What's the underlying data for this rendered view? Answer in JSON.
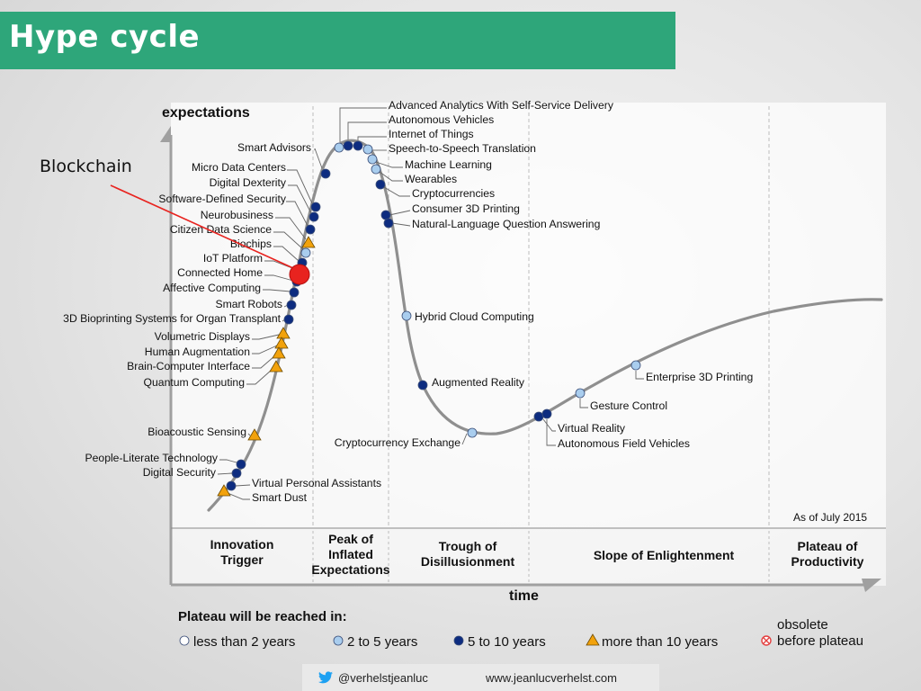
{
  "slide": {
    "title": "Hype cycle",
    "callout": "Blockchain"
  },
  "diagram": {
    "y_axis_label": "expectations",
    "x_axis_label": "time",
    "as_of": "As of July 2015",
    "phases": [
      {
        "lines": [
          "Innovation",
          "Trigger"
        ]
      },
      {
        "lines": [
          "Peak of",
          "Inflated",
          "Expectations"
        ]
      },
      {
        "lines": [
          "Trough of",
          "Disillusionment"
        ]
      },
      {
        "lines": [
          "Slope of Enlightenment"
        ]
      },
      {
        "lines": [
          "Plateau of",
          "Productivity"
        ]
      }
    ],
    "technologies": [
      {
        "name": "Advanced Analytics With Self-Service Delivery",
        "years": "2 to 5 years"
      },
      {
        "name": "Autonomous Vehicles",
        "years": "5 to 10 years"
      },
      {
        "name": "Internet of Things",
        "years": "5 to 10 years"
      },
      {
        "name": "Speech-to-Speech Translation",
        "years": "2 to 5 years"
      },
      {
        "name": "Machine Learning",
        "years": "2 to 5 years"
      },
      {
        "name": "Wearables",
        "years": "2 to 5 years"
      },
      {
        "name": "Cryptocurrencies",
        "years": "5 to 10 years"
      },
      {
        "name": "Consumer 3D Printing",
        "years": "5 to 10 years"
      },
      {
        "name": "Natural-Language Question Answering",
        "years": "5 to 10 years"
      },
      {
        "name": "Smart Advisors",
        "years": "5 to 10 years"
      },
      {
        "name": "Micro Data Centers",
        "years": "5 to 10 years"
      },
      {
        "name": "Digital Dexterity",
        "years": "5 to 10 years"
      },
      {
        "name": "Software-Defined Security",
        "years": "5 to 10 years"
      },
      {
        "name": "Neurobusiness",
        "years": "more than 10 years"
      },
      {
        "name": "Citizen Data Science",
        "years": "2 to 5 years"
      },
      {
        "name": "Biochips",
        "years": "5 to 10 years"
      },
      {
        "name": "IoT Platform",
        "years": "5 to 10 years"
      },
      {
        "name": "Connected Home",
        "years": "5 to 10 years"
      },
      {
        "name": "Affective Computing",
        "years": "5 to 10 years"
      },
      {
        "name": "Smart Robots",
        "years": "5 to 10 years"
      },
      {
        "name": "3D Bioprinting Systems for Organ Transplant",
        "years": "5 to 10 years"
      },
      {
        "name": "Volumetric Displays",
        "years": "more than 10 years"
      },
      {
        "name": "Human Augmentation",
        "years": "more than 10 years"
      },
      {
        "name": "Brain-Computer Interface",
        "years": "more than 10 years"
      },
      {
        "name": "Quantum Computing",
        "years": "more than 10 years"
      },
      {
        "name": "Bioacoustic Sensing",
        "years": "more than 10 years"
      },
      {
        "name": "People-Literate Technology",
        "years": "5 to 10 years"
      },
      {
        "name": "Digital Security",
        "years": "5 to 10 years"
      },
      {
        "name": "Virtual Personal Assistants",
        "years": "5 to 10 years"
      },
      {
        "name": "Smart Dust",
        "years": "more than 10 years"
      },
      {
        "name": "Hybrid Cloud Computing",
        "years": "2 to 5 years"
      },
      {
        "name": "Augmented Reality",
        "years": "5 to 10 years"
      },
      {
        "name": "Cryptocurrency Exchange",
        "years": "2 to 5 years"
      },
      {
        "name": "Virtual Reality",
        "years": "5 to 10 years"
      },
      {
        "name": "Autonomous Field Vehicles",
        "years": "5 to 10 years"
      },
      {
        "name": "Gesture Control",
        "years": "2 to 5 years"
      },
      {
        "name": "Enterprise 3D Printing",
        "years": "2 to 5 years"
      }
    ],
    "legend": {
      "title": "Plateau will be reached in:",
      "items": [
        {
          "label": "less than 2 years",
          "marker": "white-circle"
        },
        {
          "label": "2 to 5 years",
          "marker": "light-blue-circle"
        },
        {
          "label": "5 to 10 years",
          "marker": "dark-blue-circle"
        },
        {
          "label": "more than 10 years",
          "marker": "orange-triangle"
        }
      ],
      "obsolete": [
        "obsolete",
        "before plateau"
      ]
    }
  },
  "footer": {
    "handle": "@verhelstjeanluc",
    "site": "www.jeanlucverhelst.com",
    "icon": "twitter-bird-icon"
  },
  "colors": {
    "title_bar": "#2ea67a",
    "dark_blue": "#0d2c80",
    "light_blue": "#a9cdee",
    "orange": "#f2a20c",
    "callout_red": "#e8231f",
    "curve": "#8f8f8f"
  }
}
